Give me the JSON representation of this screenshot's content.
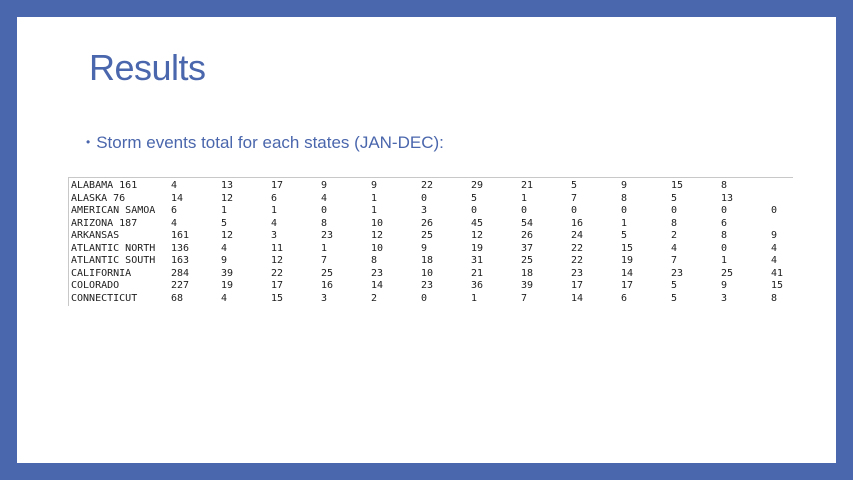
{
  "slide": {
    "title": "Results",
    "bullet_symbol": "•",
    "bullet_text": "Storm events total for each states (JAN-DEC):"
  },
  "table": {
    "rows": [
      [
        "ALABAMA 161",
        "4",
        "13",
        "17",
        "9",
        "9",
        "22",
        "29",
        "21",
        "5",
        "9",
        "15",
        "8",
        ""
      ],
      [
        "ALASKA  76",
        "14",
        "12",
        "6",
        "4",
        "1",
        "0",
        "5",
        "1",
        "7",
        "8",
        "5",
        "13",
        ""
      ],
      [
        "AMERICAN SAMOA",
        "6",
        "1",
        "1",
        "0",
        "1",
        "3",
        "0",
        "0",
        "0",
        "0",
        "0",
        "0",
        "0"
      ],
      [
        "ARIZONA 187",
        "4",
        "5",
        "4",
        "8",
        "10",
        "26",
        "45",
        "54",
        "16",
        "1",
        "8",
        "6",
        ""
      ],
      [
        "ARKANSAS",
        "161",
        "12",
        "3",
        "23",
        "12",
        "25",
        "12",
        "26",
        "24",
        "5",
        "2",
        "8",
        "9"
      ],
      [
        "ATLANTIC NORTH",
        "136",
        "4",
        "11",
        "1",
        "10",
        "9",
        "19",
        "37",
        "22",
        "15",
        "4",
        "0",
        "4"
      ],
      [
        "ATLANTIC SOUTH",
        "163",
        "9",
        "12",
        "7",
        "8",
        "18",
        "31",
        "25",
        "22",
        "19",
        "7",
        "1",
        "4"
      ],
      [
        "CALIFORNIA",
        "284",
        "39",
        "22",
        "25",
        "23",
        "10",
        "21",
        "18",
        "23",
        "14",
        "23",
        "25",
        "41"
      ],
      [
        "COLORADO",
        "227",
        "19",
        "17",
        "16",
        "14",
        "23",
        "36",
        "39",
        "17",
        "17",
        "5",
        "9",
        "15"
      ],
      [
        "CONNECTICUT",
        "68",
        "4",
        "15",
        "3",
        "2",
        "0",
        "1",
        "7",
        "14",
        "6",
        "5",
        "3",
        "8"
      ]
    ]
  }
}
